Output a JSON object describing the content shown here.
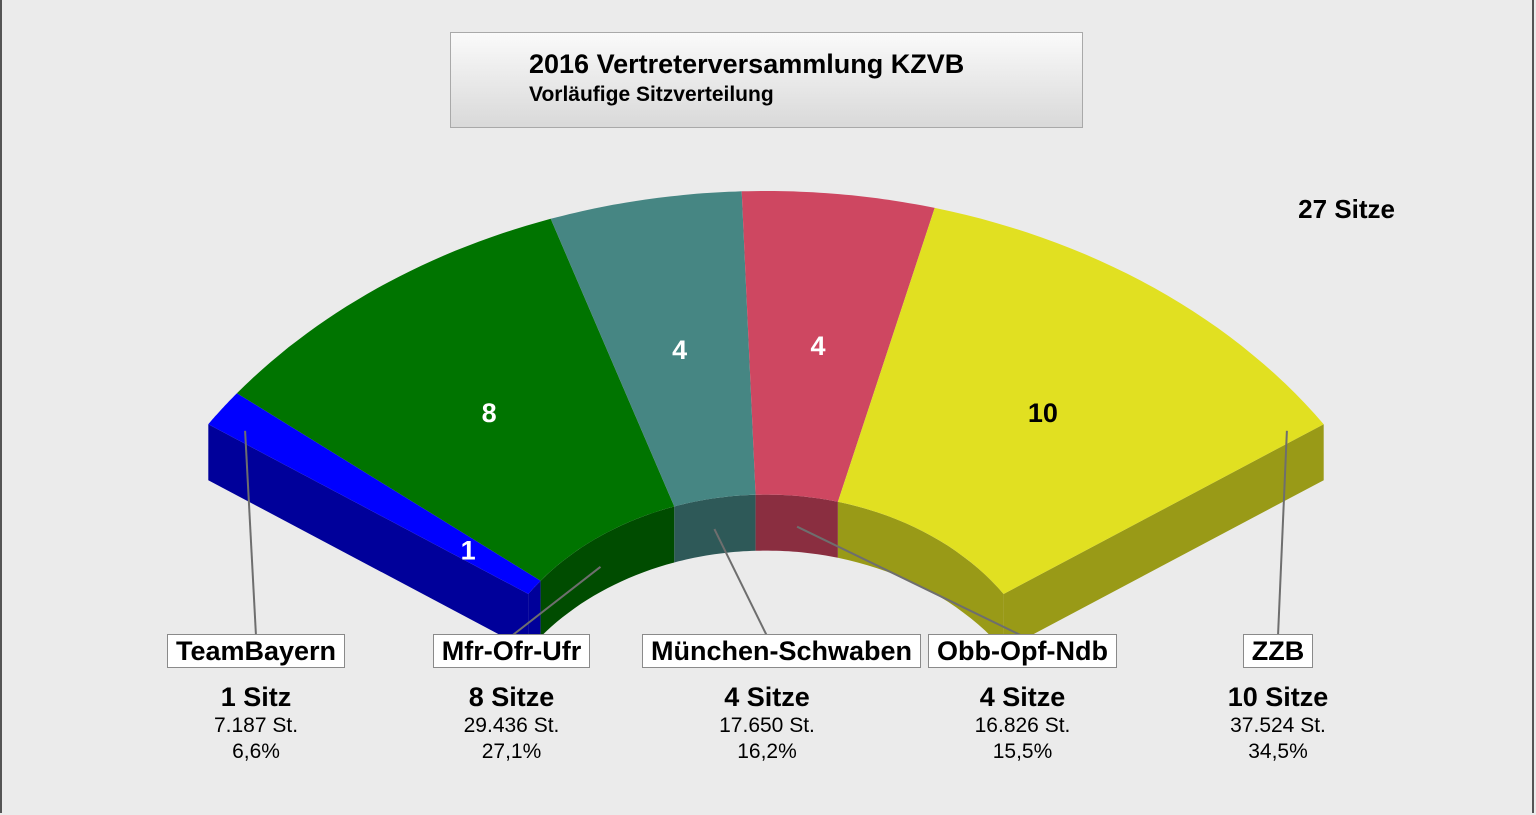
{
  "header": {
    "title": "2016 Vertreterversammlung KZVB",
    "subtitle": "Vorläufige Sitzverteilung",
    "total": "27 Sitze"
  },
  "chart_data": {
    "type": "semicircle-seat-distribution",
    "total_seats": 27,
    "series": [
      {
        "name": "TeamBayern",
        "seats": 1,
        "seats_label": "1 Sitz",
        "votes": "7.187 St.",
        "percent": "6,6%",
        "color": "#0000ff",
        "side_color": "#00009a",
        "label_color": "#ffffff"
      },
      {
        "name": "Mfr-Ofr-Ufr",
        "seats": 8,
        "seats_label": "8 Sitze",
        "votes": "29.436 St.",
        "percent": "27,1%",
        "color": "#007400",
        "side_color": "#004c00",
        "label_color": "#ffffff"
      },
      {
        "name": "München-Schwaben",
        "seats": 4,
        "seats_label": "4 Sitze",
        "votes": "17.650 St.",
        "percent": "16,2%",
        "color": "#468683",
        "side_color": "#2e5958",
        "label_color": "#ffffff"
      },
      {
        "name": "Obb-Opf-Ndb",
        "seats": 4,
        "seats_label": "4 Sitze",
        "votes": "16.826 St.",
        "percent": "15,5%",
        "color": "#ce4761",
        "side_color": "#8a2e40",
        "label_color": "#ffffff"
      },
      {
        "name": "ZZB",
        "seats": 10,
        "seats_label": "10 Sitze",
        "votes": "37.524 St.",
        "percent": "34,5%",
        "color": "#e1e021",
        "side_color": "#999a17",
        "label_color": "#000000"
      }
    ]
  }
}
